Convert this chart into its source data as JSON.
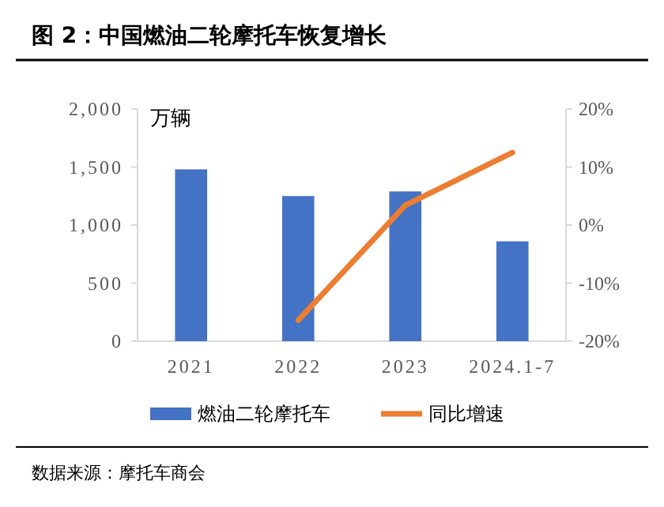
{
  "chart_data": {
    "type": "bar",
    "title": "图 2：中国燃油二轮摩托车恢复增长",
    "ylabel": "万辆",
    "categories": [
      "2021",
      "2022",
      "2023",
      "2024.1-7"
    ],
    "series": [
      {
        "name": "燃油二轮摩托车",
        "color": "#4472c4",
        "values": [
          1480,
          1250,
          1290,
          860
        ]
      },
      {
        "name": "同比增速",
        "type": "line",
        "axis": "y2",
        "color": "#ed7d31",
        "values": [
          null,
          -16.4,
          3.4,
          12.5
        ]
      }
    ],
    "ylim": [
      0,
      2000
    ],
    "yticks": [
      {
        "value": 0,
        "label": "0"
      },
      {
        "value": 500,
        "label": "500"
      },
      {
        "value": 1000,
        "label": "1,000"
      },
      {
        "value": 1500,
        "label": "1,500"
      },
      {
        "value": 2000,
        "label": "2,000"
      }
    ],
    "y2lim": [
      -20,
      20
    ],
    "y2ticks": [
      {
        "value": -20,
        "label": "-20%"
      },
      {
        "value": -10,
        "label": "-10%"
      },
      {
        "value": 0,
        "label": "0%"
      },
      {
        "value": 10,
        "label": "10%"
      },
      {
        "value": 20,
        "label": "20%"
      }
    ],
    "legend": "bottom",
    "annotations": [
      "数据来源：摩托车商会"
    ]
  }
}
